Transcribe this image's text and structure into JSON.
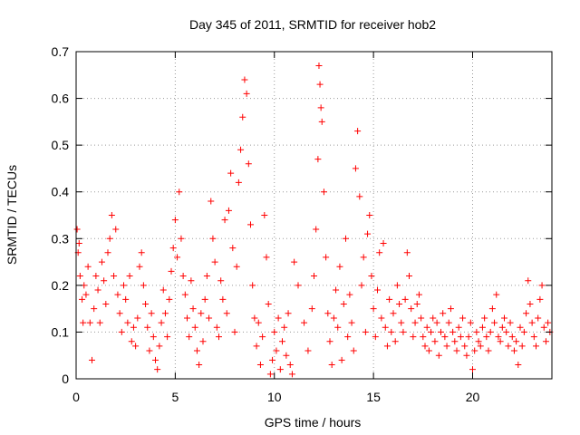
{
  "chart_data": {
    "type": "scatter",
    "title": "Day 345 of 2011, SRMTID for receiver hob2",
    "xlabel": "GPS time / hours",
    "ylabel": "SRMTID / TECUs",
    "xlim": [
      0,
      24
    ],
    "ylim": [
      0,
      0.7
    ],
    "x_ticks": [
      0,
      5,
      10,
      15,
      20
    ],
    "x_tick_labels": [
      "0",
      "5",
      "10",
      "15",
      "20"
    ],
    "y_ticks": [
      0,
      0.1,
      0.2,
      0.3,
      0.4,
      0.5,
      0.6,
      0.7
    ],
    "y_tick_labels": [
      "0",
      "0.1",
      "0.2",
      "0.3",
      "0.4",
      "0.5",
      "0.6",
      "0.7"
    ],
    "grid": true,
    "marker": "+",
    "series_color": "#ff0000",
    "points": [
      [
        0.05,
        0.32
      ],
      [
        0.1,
        0.27
      ],
      [
        0.15,
        0.29
      ],
      [
        0.2,
        0.22
      ],
      [
        0.3,
        0.17
      ],
      [
        0.35,
        0.12
      ],
      [
        0.4,
        0.2
      ],
      [
        0.5,
        0.18
      ],
      [
        0.6,
        0.24
      ],
      [
        0.7,
        0.12
      ],
      [
        0.8,
        0.04
      ],
      [
        0.9,
        0.15
      ],
      [
        1.0,
        0.22
      ],
      [
        1.1,
        0.19
      ],
      [
        1.2,
        0.12
      ],
      [
        1.3,
        0.25
      ],
      [
        1.4,
        0.21
      ],
      [
        1.5,
        0.16
      ],
      [
        1.6,
        0.27
      ],
      [
        1.7,
        0.3
      ],
      [
        1.8,
        0.35
      ],
      [
        1.9,
        0.22
      ],
      [
        2.0,
        0.32
      ],
      [
        2.1,
        0.18
      ],
      [
        2.2,
        0.14
      ],
      [
        2.3,
        0.1
      ],
      [
        2.4,
        0.2
      ],
      [
        2.5,
        0.17
      ],
      [
        2.6,
        0.12
      ],
      [
        2.7,
        0.22
      ],
      [
        2.8,
        0.08
      ],
      [
        2.9,
        0.11
      ],
      [
        3.0,
        0.07
      ],
      [
        3.1,
        0.13
      ],
      [
        3.2,
        0.24
      ],
      [
        3.3,
        0.27
      ],
      [
        3.4,
        0.2
      ],
      [
        3.5,
        0.16
      ],
      [
        3.6,
        0.11
      ],
      [
        3.7,
        0.06
      ],
      [
        3.8,
        0.14
      ],
      [
        3.9,
        0.09
      ],
      [
        4.0,
        0.04
      ],
      [
        4.1,
        0.02
      ],
      [
        4.2,
        0.07
      ],
      [
        4.3,
        0.12
      ],
      [
        4.4,
        0.19
      ],
      [
        4.5,
        0.14
      ],
      [
        4.6,
        0.09
      ],
      [
        4.7,
        0.17
      ],
      [
        4.8,
        0.23
      ],
      [
        4.9,
        0.28
      ],
      [
        5.0,
        0.34
      ],
      [
        5.1,
        0.26
      ],
      [
        5.2,
        0.4
      ],
      [
        5.3,
        0.3
      ],
      [
        5.4,
        0.22
      ],
      [
        5.5,
        0.18
      ],
      [
        5.6,
        0.13
      ],
      [
        5.7,
        0.09
      ],
      [
        5.8,
        0.21
      ],
      [
        5.9,
        0.15
      ],
      [
        6.0,
        0.11
      ],
      [
        6.1,
        0.06
      ],
      [
        6.2,
        0.03
      ],
      [
        6.3,
        0.14
      ],
      [
        6.4,
        0.08
      ],
      [
        6.5,
        0.17
      ],
      [
        6.6,
        0.22
      ],
      [
        6.7,
        0.13
      ],
      [
        6.8,
        0.38
      ],
      [
        6.9,
        0.3
      ],
      [
        7.0,
        0.25
      ],
      [
        7.1,
        0.11
      ],
      [
        7.2,
        0.09
      ],
      [
        7.3,
        0.21
      ],
      [
        7.4,
        0.17
      ],
      [
        7.5,
        0.34
      ],
      [
        7.6,
        0.14
      ],
      [
        7.7,
        0.36
      ],
      [
        7.8,
        0.44
      ],
      [
        7.9,
        0.28
      ],
      [
        8.0,
        0.1
      ],
      [
        8.1,
        0.24
      ],
      [
        8.2,
        0.42
      ],
      [
        8.3,
        0.49
      ],
      [
        8.4,
        0.56
      ],
      [
        8.5,
        0.64
      ],
      [
        8.6,
        0.61
      ],
      [
        8.7,
        0.46
      ],
      [
        8.8,
        0.33
      ],
      [
        8.9,
        0.2
      ],
      [
        9.0,
        0.13
      ],
      [
        9.1,
        0.07
      ],
      [
        9.2,
        0.12
      ],
      [
        9.3,
        0.03
      ],
      [
        9.4,
        0.09
      ],
      [
        9.5,
        0.35
      ],
      [
        9.6,
        0.26
      ],
      [
        9.7,
        0.16
      ],
      [
        9.8,
        0.01
      ],
      [
        9.9,
        0.04
      ],
      [
        10.0,
        0.1
      ],
      [
        10.1,
        0.06
      ],
      [
        10.2,
        0.13
      ],
      [
        10.3,
        0.02
      ],
      [
        10.4,
        0.08
      ],
      [
        10.5,
        0.11
      ],
      [
        10.6,
        0.05
      ],
      [
        10.7,
        0.14
      ],
      [
        10.8,
        0.03
      ],
      [
        10.9,
        0.01
      ],
      [
        11.0,
        0.25
      ],
      [
        11.2,
        0.2
      ],
      [
        11.5,
        0.12
      ],
      [
        11.7,
        0.06
      ],
      [
        11.9,
        0.15
      ],
      [
        12.0,
        0.22
      ],
      [
        12.1,
        0.32
      ],
      [
        12.2,
        0.47
      ],
      [
        12.25,
        0.67
      ],
      [
        12.3,
        0.63
      ],
      [
        12.35,
        0.58
      ],
      [
        12.4,
        0.55
      ],
      [
        12.5,
        0.4
      ],
      [
        12.6,
        0.26
      ],
      [
        12.7,
        0.14
      ],
      [
        12.8,
        0.08
      ],
      [
        12.9,
        0.03
      ],
      [
        13.0,
        0.13
      ],
      [
        13.1,
        0.19
      ],
      [
        13.2,
        0.11
      ],
      [
        13.3,
        0.24
      ],
      [
        13.4,
        0.04
      ],
      [
        13.5,
        0.16
      ],
      [
        13.6,
        0.3
      ],
      [
        13.7,
        0.09
      ],
      [
        13.8,
        0.18
      ],
      [
        13.9,
        0.12
      ],
      [
        14.0,
        0.06
      ],
      [
        14.1,
        0.45
      ],
      [
        14.2,
        0.53
      ],
      [
        14.3,
        0.39
      ],
      [
        14.4,
        0.2
      ],
      [
        14.5,
        0.26
      ],
      [
        14.6,
        0.1
      ],
      [
        14.7,
        0.31
      ],
      [
        14.8,
        0.35
      ],
      [
        14.9,
        0.22
      ],
      [
        15.0,
        0.15
      ],
      [
        15.1,
        0.09
      ],
      [
        15.2,
        0.19
      ],
      [
        15.3,
        0.27
      ],
      [
        15.4,
        0.13
      ],
      [
        15.5,
        0.29
      ],
      [
        15.6,
        0.11
      ],
      [
        15.7,
        0.07
      ],
      [
        15.8,
        0.17
      ],
      [
        15.9,
        0.1
      ],
      [
        16.0,
        0.14
      ],
      [
        16.1,
        0.08
      ],
      [
        16.2,
        0.2
      ],
      [
        16.3,
        0.16
      ],
      [
        16.4,
        0.12
      ],
      [
        16.5,
        0.1
      ],
      [
        16.6,
        0.17
      ],
      [
        16.7,
        0.27
      ],
      [
        16.8,
        0.22
      ],
      [
        16.9,
        0.15
      ],
      [
        17.0,
        0.09
      ],
      [
        17.1,
        0.12
      ],
      [
        17.2,
        0.16
      ],
      [
        17.3,
        0.18
      ],
      [
        17.4,
        0.13
      ],
      [
        17.5,
        0.09
      ],
      [
        17.6,
        0.07
      ],
      [
        17.7,
        0.11
      ],
      [
        17.8,
        0.06
      ],
      [
        17.9,
        0.1
      ],
      [
        18.0,
        0.13
      ],
      [
        18.1,
        0.08
      ],
      [
        18.2,
        0.12
      ],
      [
        18.3,
        0.05
      ],
      [
        18.4,
        0.1
      ],
      [
        18.5,
        0.14
      ],
      [
        18.6,
        0.09
      ],
      [
        18.7,
        0.07
      ],
      [
        18.8,
        0.12
      ],
      [
        18.9,
        0.15
      ],
      [
        19.0,
        0.1
      ],
      [
        19.1,
        0.08
      ],
      [
        19.2,
        0.06
      ],
      [
        19.3,
        0.11
      ],
      [
        19.4,
        0.09
      ],
      [
        19.5,
        0.13
      ],
      [
        19.6,
        0.07
      ],
      [
        19.7,
        0.05
      ],
      [
        19.8,
        0.09
      ],
      [
        19.9,
        0.12
      ],
      [
        20.0,
        0.02
      ],
      [
        20.1,
        0.06
      ],
      [
        20.2,
        0.1
      ],
      [
        20.3,
        0.08
      ],
      [
        20.4,
        0.07
      ],
      [
        20.5,
        0.11
      ],
      [
        20.6,
        0.13
      ],
      [
        20.7,
        0.09
      ],
      [
        20.8,
        0.06
      ],
      [
        20.9,
        0.1
      ],
      [
        21.0,
        0.15
      ],
      [
        21.1,
        0.12
      ],
      [
        21.2,
        0.18
      ],
      [
        21.3,
        0.09
      ],
      [
        21.4,
        0.08
      ],
      [
        21.5,
        0.11
      ],
      [
        21.6,
        0.13
      ],
      [
        21.7,
        0.1
      ],
      [
        21.8,
        0.07
      ],
      [
        21.9,
        0.12
      ],
      [
        22.0,
        0.09
      ],
      [
        22.1,
        0.06
      ],
      [
        22.2,
        0.08
      ],
      [
        22.3,
        0.03
      ],
      [
        22.4,
        0.11
      ],
      [
        22.5,
        0.07
      ],
      [
        22.6,
        0.1
      ],
      [
        22.7,
        0.14
      ],
      [
        22.8,
        0.21
      ],
      [
        22.9,
        0.16
      ],
      [
        23.0,
        0.12
      ],
      [
        23.1,
        0.09
      ],
      [
        23.2,
        0.07
      ],
      [
        23.3,
        0.13
      ],
      [
        23.4,
        0.17
      ],
      [
        23.5,
        0.2
      ],
      [
        23.6,
        0.11
      ],
      [
        23.7,
        0.08
      ],
      [
        23.8,
        0.12
      ],
      [
        23.9,
        0.1
      ]
    ]
  }
}
